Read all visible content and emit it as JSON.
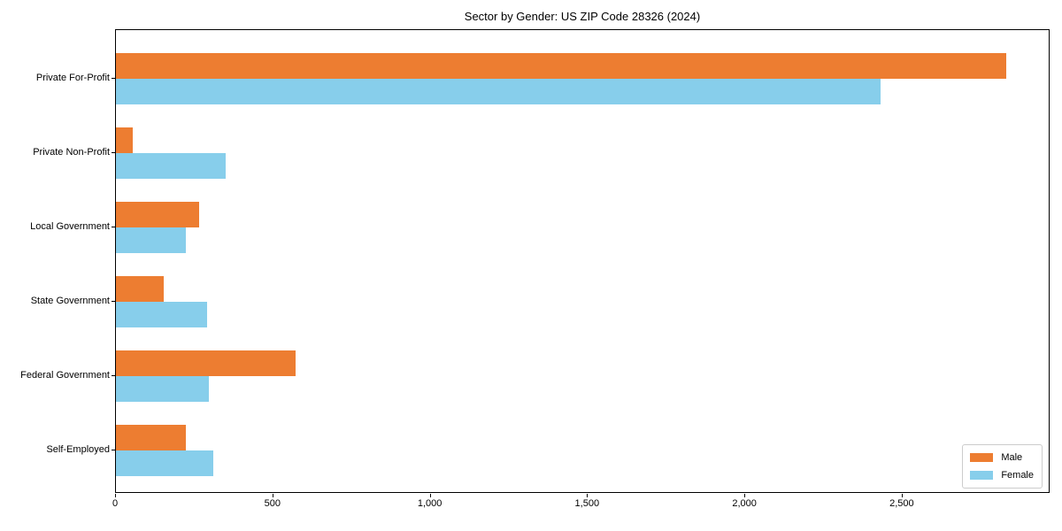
{
  "chart_data": {
    "type": "bar",
    "orientation": "horizontal",
    "title": "Sector by Gender: US ZIP Code 28326 (2024)",
    "categories": [
      "Private For-Profit",
      "Private Non-Profit",
      "Local Government",
      "State Government",
      "Federal Government",
      "Self-Employed"
    ],
    "series": [
      {
        "name": "Male",
        "color": "#ED7D31",
        "values": [
          2830,
          54,
          263,
          151,
          570,
          221
        ]
      },
      {
        "name": "Female",
        "color": "#87CEEB",
        "values": [
          2430,
          348,
          223,
          290,
          296,
          310
        ]
      }
    ],
    "xlabel": "",
    "ylabel": "",
    "xlim": [
      0,
      2970
    ],
    "x_ticks": [
      0,
      500,
      1000,
      1500,
      2000,
      2500
    ],
    "x_tick_labels": [
      "0",
      "500",
      "1,000",
      "1,500",
      "2,000",
      "2,500"
    ],
    "grid": false,
    "plot_background": "#ffffff",
    "spine_color": "#000000",
    "legend": {
      "position": "lower right",
      "entries": [
        "Male",
        "Female"
      ],
      "border_color": "#cccccc"
    }
  }
}
